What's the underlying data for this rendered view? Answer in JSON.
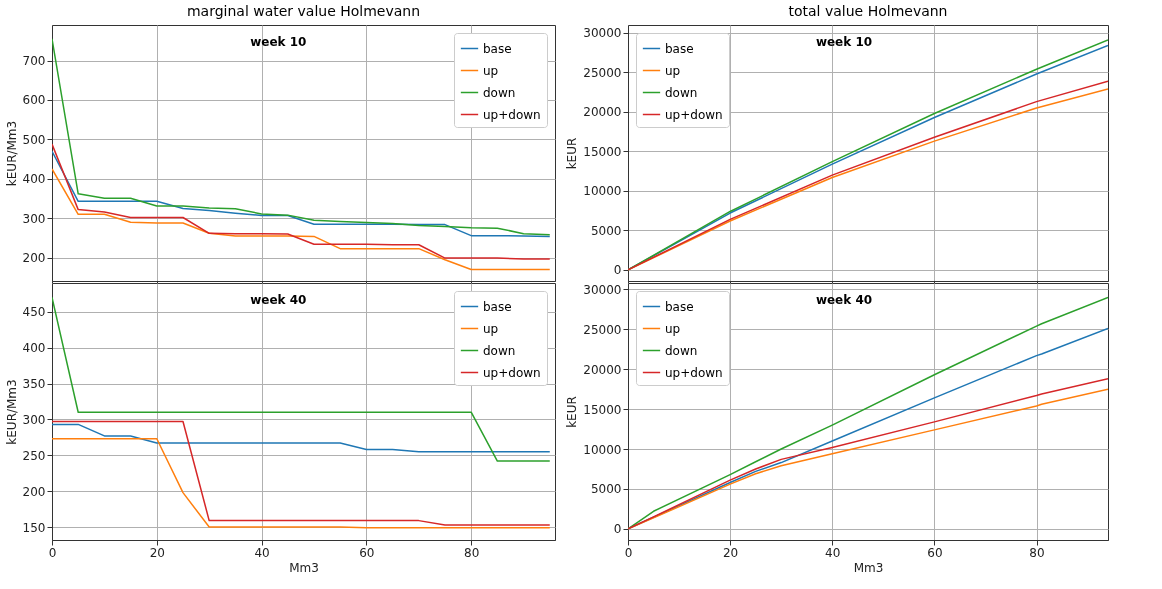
{
  "chart_data": [
    {
      "type": "line",
      "title": "marginal water value Holmevann",
      "ylabel": "kEUR/Mm3",
      "annotations": [
        "week 10"
      ],
      "x": [
        0,
        5,
        10,
        15,
        20,
        25,
        30,
        35,
        40,
        45,
        50,
        55,
        60,
        65,
        70,
        75,
        80,
        85,
        90,
        95
      ],
      "xlim": [
        0,
        96
      ],
      "xticks": [
        0,
        20,
        40,
        60,
        80
      ],
      "ylim": [
        141,
        790
      ],
      "yticks": [
        200,
        300,
        400,
        500,
        600,
        700
      ],
      "grid": true,
      "legend": "top right",
      "tick_labels": "y",
      "series": [
        {
          "name": "base",
          "color": "#1f77b4",
          "values": [
            470,
            343,
            343,
            343,
            343,
            325,
            320,
            313,
            307,
            307,
            285,
            285,
            285,
            285,
            284,
            284,
            256,
            256,
            255,
            254
          ]
        },
        {
          "name": "up",
          "color": "#ff7f0e",
          "values": [
            425,
            310,
            310,
            290,
            288,
            288,
            262,
            255,
            255,
            255,
            254,
            223,
            223,
            223,
            223,
            195,
            170,
            170,
            170,
            170
          ]
        },
        {
          "name": "down",
          "color": "#2ca02c",
          "values": [
            755,
            362,
            351,
            351,
            331,
            331,
            326,
            324,
            311,
            308,
            295,
            292,
            289,
            287,
            282,
            279,
            276,
            275,
            261,
            258
          ]
        },
        {
          "name": "up+down",
          "color": "#d62728",
          "values": [
            488,
            322,
            316,
            302,
            302,
            302,
            262,
            261,
            261,
            260,
            234,
            234,
            234,
            233,
            233,
            199,
            199,
            199,
            197,
            197
          ]
        }
      ]
    },
    {
      "type": "line",
      "title": "total value Holmevann",
      "ylabel": "kEUR",
      "annotations": [
        "week 10"
      ],
      "x": [
        0,
        20,
        40,
        60,
        80,
        94
      ],
      "xlim": [
        0,
        94
      ],
      "xticks": [
        0,
        20,
        40,
        60,
        80
      ],
      "ylim": [
        -1400,
        31000
      ],
      "yticks": [
        0,
        5000,
        10000,
        15000,
        20000,
        25000,
        30000
      ],
      "grid": true,
      "legend": "top left",
      "tick_labels": "y",
      "series": [
        {
          "name": "base",
          "color": "#1f77b4",
          "values": [
            0,
            7200,
            13400,
            19300,
            24800,
            28400
          ]
        },
        {
          "name": "up",
          "color": "#ff7f0e",
          "values": [
            0,
            6200,
            11700,
            16300,
            20500,
            22900
          ]
        },
        {
          "name": "down",
          "color": "#2ca02c",
          "values": [
            0,
            7400,
            13700,
            19800,
            25400,
            29100
          ]
        },
        {
          "name": "up+down",
          "color": "#d62728",
          "values": [
            0,
            6400,
            12000,
            16800,
            21300,
            23900
          ]
        }
      ]
    },
    {
      "type": "line",
      "xlabel": "Mm3",
      "ylabel": "kEUR/Mm3",
      "annotations": [
        "week 40"
      ],
      "x": [
        0,
        5,
        10,
        15,
        20,
        25,
        30,
        35,
        40,
        45,
        50,
        55,
        60,
        65,
        70,
        75,
        80,
        85,
        90,
        95
      ],
      "xlim": [
        0,
        96
      ],
      "xticks": [
        0,
        20,
        40,
        60,
        80
      ],
      "ylim": [
        132,
        490
      ],
      "yticks": [
        150,
        200,
        250,
        300,
        350,
        400,
        450
      ],
      "grid": true,
      "legend": "top right",
      "series": [
        {
          "name": "base",
          "color": "#1f77b4",
          "values": [
            293,
            293,
            277,
            277,
            267,
            267,
            267,
            267,
            267,
            267,
            267,
            267,
            258,
            258,
            255,
            255,
            255,
            255,
            255,
            255
          ]
        },
        {
          "name": "up",
          "color": "#ff7f0e",
          "values": [
            273,
            273,
            273,
            273,
            273,
            198,
            150,
            150,
            150,
            150,
            150,
            150,
            149,
            149,
            149,
            149,
            149,
            149,
            149,
            149
          ]
        },
        {
          "name": "down",
          "color": "#2ca02c",
          "values": [
            470,
            310,
            310,
            310,
            310,
            310,
            310,
            310,
            310,
            310,
            310,
            310,
            310,
            310,
            310,
            310,
            310,
            242,
            242,
            242
          ]
        },
        {
          "name": "up+down",
          "color": "#d62728",
          "values": [
            297,
            297,
            297,
            297,
            297,
            297,
            159,
            159,
            159,
            159,
            159,
            159,
            159,
            159,
            159,
            153,
            153,
            153,
            153,
            153
          ]
        }
      ]
    },
    {
      "type": "line",
      "xlabel": "Mm3",
      "ylabel": "kEUR",
      "annotations": [
        "week 40"
      ],
      "x": [
        0,
        5,
        20,
        25,
        30,
        40,
        60,
        80,
        81,
        94
      ],
      "xlim": [
        0,
        94
      ],
      "xticks": [
        0,
        20,
        40,
        60,
        80
      ],
      "ylim": [
        -1400,
        30800
      ],
      "yticks": [
        0,
        5000,
        10000,
        15000,
        20000,
        25000,
        30000
      ],
      "grid": true,
      "legend": "top left",
      "series": [
        {
          "name": "base",
          "color": "#1f77b4",
          "values": [
            0,
            1450,
            5800,
            7200,
            8300,
            11000,
            16400,
            21700,
            21900,
            25100
          ]
        },
        {
          "name": "up",
          "color": "#ff7f0e",
          "values": [
            0,
            1370,
            5600,
            6900,
            7900,
            9400,
            12400,
            15400,
            15600,
            17500
          ]
        },
        {
          "name": "down",
          "color": "#2ca02c",
          "values": [
            0,
            2200,
            6800,
            8400,
            10000,
            13000,
            19300,
            25400,
            25700,
            29000
          ]
        },
        {
          "name": "up+down",
          "color": "#d62728",
          "values": [
            0,
            1500,
            6100,
            7500,
            8700,
            10200,
            13400,
            16700,
            16900,
            18800
          ]
        }
      ]
    }
  ]
}
